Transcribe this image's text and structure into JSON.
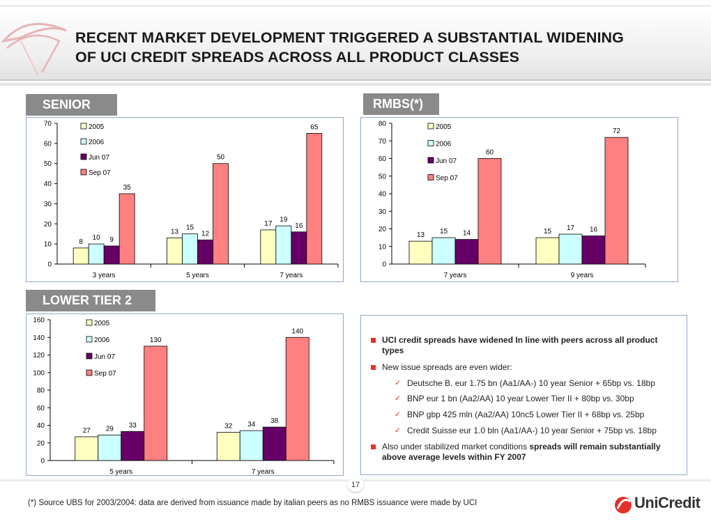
{
  "header": {
    "title_line1": "RECENT MARKET DEVELOPMENT TRIGGERED A SUBSTANTIAL WIDENING",
    "title_line2": "OF UCI CREDIT SPREADS ACROSS ALL PRODUCT CLASSES"
  },
  "sections": {
    "senior": "SENIOR",
    "rmbs": "RMBS(*)",
    "lower_tier2": "LOWER TIER 2"
  },
  "legend": [
    "2005",
    "2006",
    "Jun 07",
    "Sep 07"
  ],
  "colors": {
    "s2005": "#ffffc0",
    "s2006": "#ccffff",
    "jun07": "#660066",
    "sep07": "#ff8080",
    "accent": "#e3322b",
    "label_bg": "#8a8a8a",
    "box_border": "#8ea8c8"
  },
  "chart_data": [
    {
      "id": "senior",
      "type": "bar",
      "categories": [
        "3 years",
        "5 years",
        "7 years"
      ],
      "series": [
        {
          "name": "2005",
          "values": [
            8,
            13,
            17
          ]
        },
        {
          "name": "2006",
          "values": [
            10,
            15,
            19
          ]
        },
        {
          "name": "Jun 07",
          "values": [
            9,
            12,
            16
          ]
        },
        {
          "name": "Sep 07",
          "values": [
            35,
            50,
            65
          ]
        }
      ],
      "yticks": [
        0,
        10,
        20,
        30,
        40,
        50,
        60,
        70
      ],
      "ylim": [
        0,
        70
      ],
      "legend_position": "top-left",
      "grid": false
    },
    {
      "id": "rmbs",
      "type": "bar",
      "categories": [
        "7 years",
        "9 years"
      ],
      "series": [
        {
          "name": "2005",
          "values": [
            13,
            15
          ]
        },
        {
          "name": "2006",
          "values": [
            15,
            17
          ]
        },
        {
          "name": "Jun 07",
          "values": [
            14,
            16
          ]
        },
        {
          "name": "Sep 07",
          "values": [
            60,
            72
          ]
        }
      ],
      "yticks": [
        0,
        10,
        20,
        30,
        40,
        50,
        60,
        70,
        80
      ],
      "ylim": [
        0,
        80
      ],
      "legend_position": "top-left",
      "grid": false
    },
    {
      "id": "lower_tier2",
      "type": "bar",
      "categories": [
        "5 years",
        "7 years"
      ],
      "series": [
        {
          "name": "2005",
          "values": [
            27,
            32
          ]
        },
        {
          "name": "2006",
          "values": [
            29,
            34
          ]
        },
        {
          "name": "Jun 07",
          "values": [
            33,
            38
          ]
        },
        {
          "name": "Sep 07",
          "values": [
            130,
            140
          ]
        }
      ],
      "yticks": [
        0,
        20,
        40,
        60,
        80,
        100,
        120,
        140,
        160
      ],
      "ylim": [
        0,
        160
      ],
      "legend_position": "top-left",
      "grid": false
    }
  ],
  "info": {
    "b1": "UCI credit spreads have widened In line with peers  across all product types",
    "b2": "New issue spreads are even wider:",
    "sub1": "Deutsche B. eur 1.75 bn (Aa1/AA-) 10 year Senior + 65bp vs. 18bp",
    "sub2": "BNP eur 1 bn (Aa2/AA) 10 year Lower Tier II + 80bp vs. 30bp",
    "sub3": "BNP gbp 425 mln (Aa2/AA) 10nc5 Lower Tier II + 68bp vs. 25bp",
    "sub4": "Credit Suisse eur 1.0 bln (Aa1/AA-) 10 year Senior + 75bp vs. 18bp",
    "b3_a": "Also under stabilized market conditions ",
    "b3_b": "spreads will remain substantially above average levels within FY 2007"
  },
  "page_number": "17",
  "footnote": "(*) Source UBS for 2003/2004:  data are derived from issuance made by italian peers as no RMBS issuance were made by UCI",
  "brand": "UniCredit"
}
